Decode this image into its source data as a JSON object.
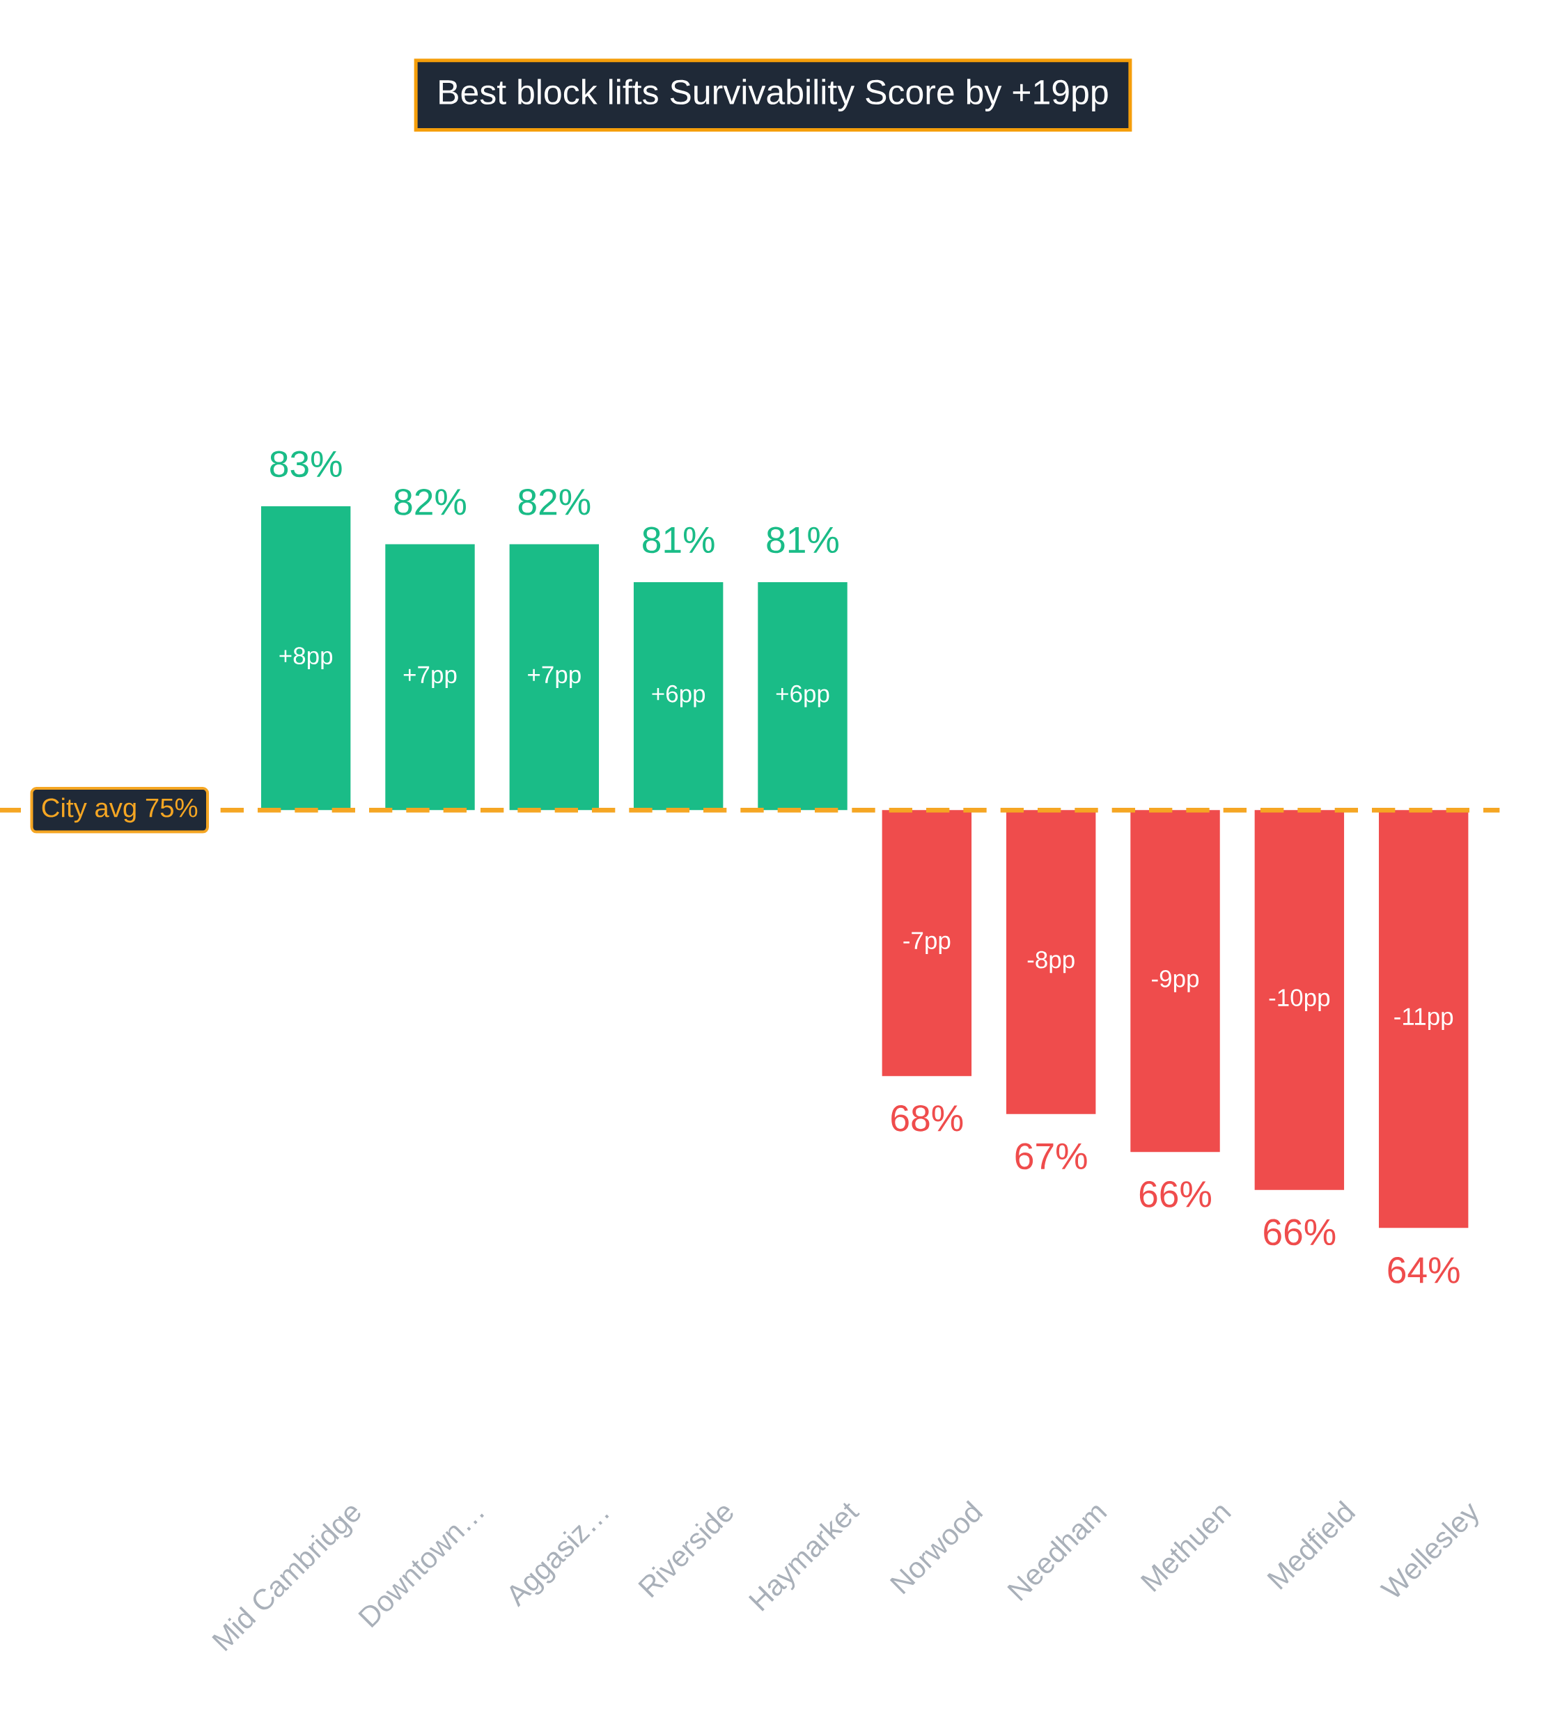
{
  "chart_data": {
    "type": "bar",
    "title": "Best block lifts Survivability Score by +19pp",
    "categories": [
      "Mid Cambridge",
      "Downtown…",
      "Aggasiz…",
      "Riverside",
      "Haymarket",
      "Norwood",
      "Needham",
      "Methuen",
      "Medfield",
      "Wellesley"
    ],
    "values": [
      8,
      7,
      7,
      6,
      6,
      -7,
      -8,
      -9,
      -10,
      -11
    ],
    "value_labels": [
      "+8pp",
      "+7pp",
      "+7pp",
      "+6pp",
      "+6pp",
      "-7pp",
      "-8pp",
      "-9pp",
      "-10pp",
      "-11pp"
    ],
    "colors": [
      "#1abc87",
      "#1abc87",
      "#1abc87",
      "#1abc87",
      "#1abc87",
      "#ef4c4c",
      "#ef4c4c",
      "#ef4c4c",
      "#ef4c4c",
      "#ef4c4c"
    ],
    "tick_labels": "x",
    "ref_lines": [
      {
        "axis": "y",
        "value": 0,
        "label": "City avg  75%",
        "color": "#f5a623",
        "line_style": "dashed"
      }
    ],
    "annotations": [
      "83%",
      "82%",
      "82%",
      "81%",
      "81%",
      "68%",
      "67%",
      "66%",
      "66%",
      "64%"
    ]
  }
}
